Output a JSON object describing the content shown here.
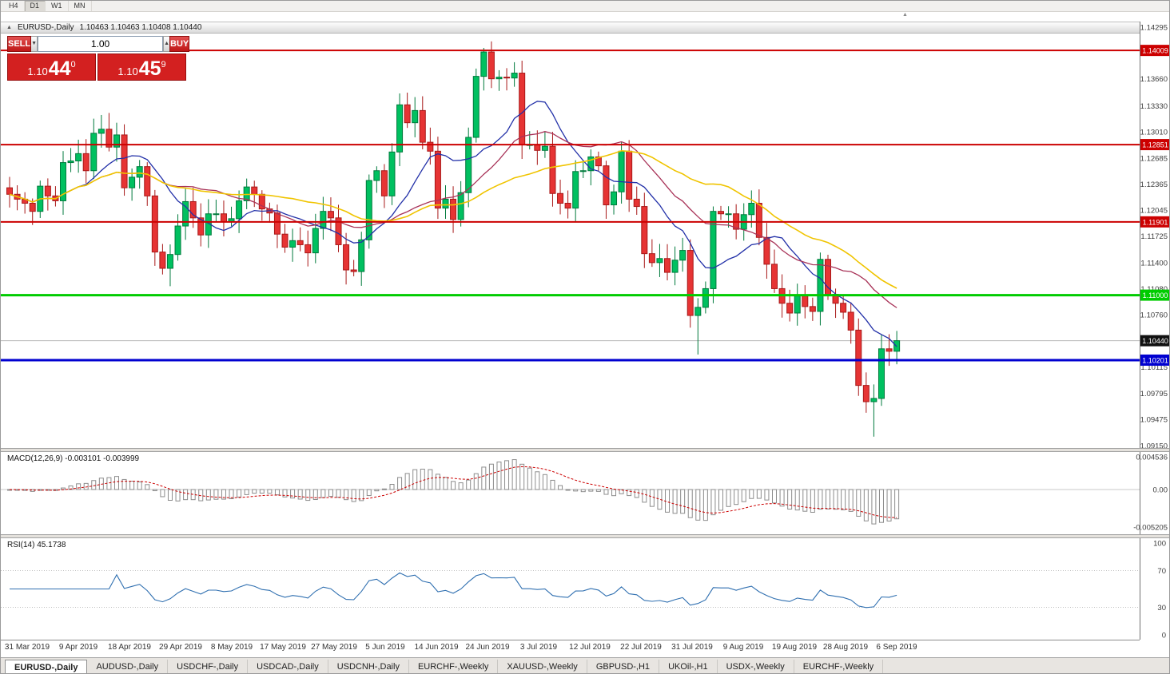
{
  "toolbar": {
    "timeframes": [
      {
        "label": "H4",
        "active": false
      },
      {
        "label": "D1",
        "active": true
      },
      {
        "label": "W1",
        "active": false
      },
      {
        "label": "MN",
        "active": false
      }
    ]
  },
  "chart_window": {
    "title_icon_glyph": "▲",
    "title": "EURUSD-,Daily",
    "quote_line": "1.10463 1.10463 1.10408 1.10440",
    "shift_marker_glyph": "▲",
    "one_click": {
      "sell_label": "SELL",
      "buy_label": "BUY",
      "volume": "1.00",
      "spinner_down_glyph": "▼",
      "spinner_up_glyph": "▲",
      "sell_price": {
        "prefix": "1.10",
        "big": "44",
        "sup": "0"
      },
      "buy_price": {
        "prefix": "1.10",
        "big": "45",
        "sup": "9"
      }
    }
  },
  "chart_data": {
    "type": "candlestick",
    "symbol": "EURUSD-",
    "timeframe": "Daily",
    "price_range": {
      "top": 1.14295,
      "bottom": 1.0915
    },
    "closes": [
      1.1224,
      1.1218,
      1.1213,
      1.1203,
      1.1234,
      1.1222,
      1.1216,
      1.1263,
      1.1265,
      1.1274,
      1.1253,
      1.1299,
      1.1304,
      1.1282,
      1.1297,
      1.1232,
      1.1245,
      1.1258,
      1.1222,
      1.1153,
      1.1133,
      1.115,
      1.1185,
      1.1215,
      1.1195,
      1.1174,
      1.12,
      1.12,
      1.119,
      1.1194,
      1.1216,
      1.1233,
      1.1224,
      1.1206,
      1.1201,
      1.1175,
      1.1159,
      1.1167,
      1.1162,
      1.1152,
      1.1182,
      1.1203,
      1.1195,
      1.1162,
      1.1131,
      1.1129,
      1.1168,
      1.1241,
      1.1253,
      1.1222,
      1.1276,
      1.1334,
      1.1312,
      1.1327,
      1.1288,
      1.1277,
      1.1207,
      1.1218,
      1.1193,
      1.1226,
      1.1294,
      1.1369,
      1.1399,
      1.1366,
      1.1368,
      1.1367,
      1.1373,
      1.1285,
      1.1285,
      1.1278,
      1.1283,
      1.1225,
      1.1213,
      1.1207,
      1.1252,
      1.1253,
      1.127,
      1.1259,
      1.1211,
      1.1227,
      1.1277,
      1.1218,
      1.1209,
      1.1151,
      1.114,
      1.1145,
      1.1128,
      1.1143,
      1.1155,
      1.1075,
      1.1085,
      1.1108,
      1.1203,
      1.12,
      1.12,
      1.1181,
      1.1199,
      1.1213,
      1.1171,
      1.1138,
      1.1108,
      1.109,
      1.1078,
      1.1099,
      1.1086,
      1.108,
      1.1144,
      1.1101,
      1.109,
      1.1079,
      1.1057,
      1.0989,
      1.0969,
      1.0973,
      1.1034,
      1.1031,
      1.1044
    ],
    "wick_overrides": {
      "13": {
        "high": 1.1324
      },
      "21": {
        "low": 1.1111
      },
      "51": {
        "high": 1.1348
      },
      "62": {
        "high": 1.1404
      },
      "63": {
        "high": 1.1412
      },
      "89": {
        "low": 1.106
      },
      "90": {
        "low": 1.1027
      },
      "113": {
        "low": 1.0926
      },
      "116": {
        "high": 1.1056,
        "low": 1.1015
      }
    },
    "candle_colors": {
      "up": "#00c060",
      "up_border": "#007a3c",
      "down": "#e63434",
      "down_border": "#a81818"
    },
    "moving_averages": [
      {
        "period": 10,
        "color": "#2230a8"
      },
      {
        "period": 21,
        "color": "#a83358"
      },
      {
        "period": 34,
        "color": "#f0c400"
      }
    ],
    "hlines": [
      {
        "value": 1.14009,
        "color": "#cc0000",
        "width": 2,
        "tag": "1.14009"
      },
      {
        "value": 1.12851,
        "color": "#cc0000",
        "width": 2,
        "tag": "1.12851"
      },
      {
        "value": 1.11901,
        "color": "#cc0000",
        "width": 2,
        "tag": "1.11901"
      },
      {
        "value": 1.11,
        "color": "#00cc00",
        "width": 3,
        "tag": "1.11000"
      },
      {
        "value": 1.10201,
        "color": "#0000d0",
        "width": 3,
        "tag": "1.10201"
      }
    ],
    "current_price": {
      "value": 1.1044,
      "tag": "1.10440",
      "color": "#111111"
    },
    "y_axis_labels": [
      "1.14295",
      "1.13660",
      "1.13330",
      "1.13010",
      "1.12685",
      "1.12365",
      "1.12045",
      "1.11725",
      "1.11400",
      "1.11080",
      "1.10760",
      "1.10115",
      "1.09795",
      "1.09475",
      "1.09150"
    ]
  },
  "macd": {
    "label": "MACD(12,26,9) -0.003101 -0.003999",
    "fast": 12,
    "slow": 26,
    "signal": 9,
    "axis_labels": [
      "0.004536",
      "0.00",
      "-0.005205"
    ],
    "scale": {
      "top": 0.004536,
      "bottom": -0.005205
    },
    "histogram_color": "#8c8c8c",
    "signal_color": "#cc0000"
  },
  "rsi": {
    "label": "RSI(14) 45.1738",
    "period": 14,
    "value": 45.1738,
    "axis_labels": [
      "100",
      "70",
      "30",
      "0"
    ],
    "levels": [
      70,
      30
    ],
    "line_color": "#2f6fb0"
  },
  "date_axis": {
    "labels": [
      "31 Mar 2019",
      "9 Apr 2019",
      "18 Apr 2019",
      "29 Apr 2019",
      "8 May 2019",
      "17 May 2019",
      "27 May 2019",
      "5 Jun 2019",
      "14 Jun 2019",
      "24 Jun 2019",
      "3 Jul 2019",
      "12 Jul 2019",
      "22 Jul 2019",
      "31 Jul 2019",
      "9 Aug 2019",
      "19 Aug 2019",
      "28 Aug 2019",
      "6 Sep 2019"
    ]
  },
  "tabs": [
    {
      "label": "EURUSD-,Daily",
      "active": true
    },
    {
      "label": "AUDUSD-,Daily",
      "active": false
    },
    {
      "label": "USDCHF-,Daily",
      "active": false
    },
    {
      "label": "USDCAD-,Daily",
      "active": false
    },
    {
      "label": "USDCNH-,Daily",
      "active": false
    },
    {
      "label": "EURCHF-,Weekly",
      "active": false
    },
    {
      "label": "XAUUSD-,Weekly",
      "active": false
    },
    {
      "label": "GBPUSD-,H1",
      "active": false
    },
    {
      "label": "UKOil-,H1",
      "active": false
    },
    {
      "label": "USDX-,Weekly",
      "active": false
    },
    {
      "label": "EURCHF-,Weekly",
      "active": false
    }
  ]
}
